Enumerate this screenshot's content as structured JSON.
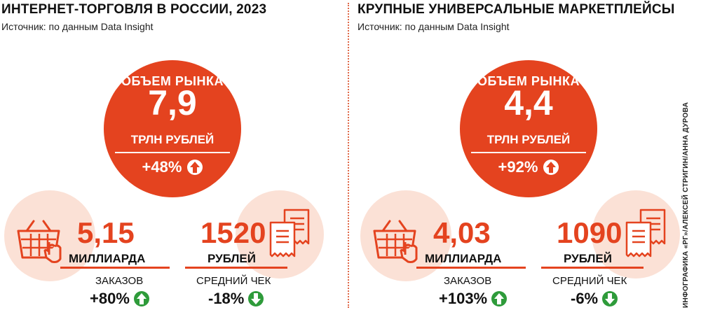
{
  "colors": {
    "accent": "#e4431f",
    "pale": "#fbe1d6",
    "up": "#2e9b3a",
    "down": "#2e9b3a"
  },
  "credit": "ИНФОГРАФИКА «РГ»/АЛЕКСЕЙ СТРИГИН/АННА ДУРОВА",
  "chart_data": [
    {
      "type": "table",
      "title": "ИНТЕРНЕТ-ТОРГОВЛЯ В РОССИИ, 2023",
      "source": "Источник: по данным Data Insight",
      "market": {
        "head": "ОБЪЕМ РЫНКА",
        "value": "7,9",
        "unit": "ТРЛН РУБЛЕЙ",
        "growth": "+48%",
        "direction": "up"
      },
      "orders": {
        "value": "5,15",
        "unit": "МИЛЛИАРДА",
        "label": "ЗАКАЗОВ",
        "growth": "+80%",
        "direction": "up",
        "icon": "basket-icon"
      },
      "check": {
        "value": "1520",
        "unit": "РУБЛЕЙ",
        "label": "СРЕДНИЙ ЧЕК",
        "growth": "-18%",
        "direction": "down",
        "icon": "receipt-icon"
      }
    },
    {
      "type": "table",
      "title": "КРУПНЫЕ УНИВЕРСАЛЬНЫЕ МАРКЕТПЛЕЙСЫ",
      "source": "Источник: по данным Data Insight",
      "market": {
        "head": "ОБЪЕМ РЫНКА",
        "value": "4,4",
        "unit": "ТРЛН РУБЛЕЙ",
        "growth": "+92%",
        "direction": "up"
      },
      "orders": {
        "value": "4,03",
        "unit": "МИЛЛИАРДА",
        "label": "ЗАКАЗОВ",
        "growth": "+103%",
        "direction": "up",
        "icon": "basket-icon"
      },
      "check": {
        "value": "1090",
        "unit": "РУБЛЕЙ",
        "label": "СРЕДНИЙ ЧЕК",
        "growth": "-6%",
        "direction": "down",
        "icon": "receipt-icon"
      }
    }
  ]
}
